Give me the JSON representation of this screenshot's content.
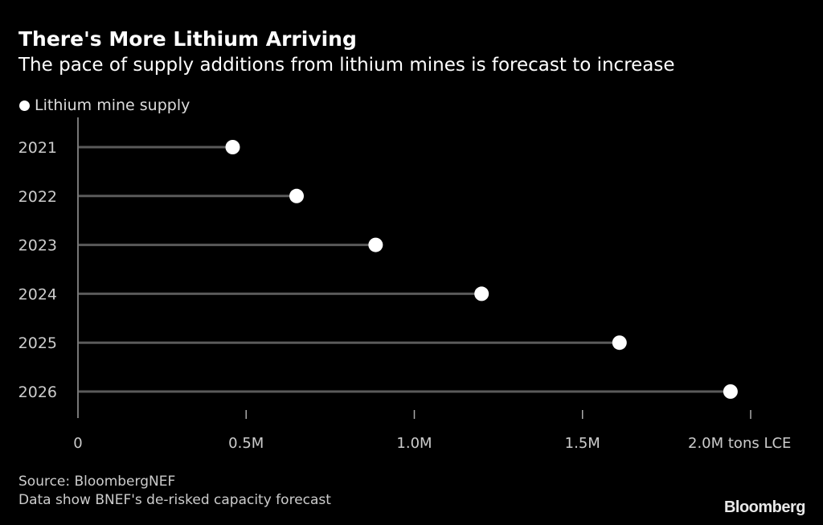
{
  "header": {
    "title": "There's More Lithium Arriving",
    "subtitle": "The pace of supply additions from lithium mines is forecast to increase"
  },
  "legend": {
    "label": "Lithium mine supply"
  },
  "footer": {
    "source": "Source: BloombergNEF",
    "note": "Data show BNEF's de-risked capacity forecast",
    "brand": "Bloomberg"
  },
  "colors": {
    "background": "#000000",
    "dot": "#ffffff",
    "stem": "#5a5a5a",
    "axis": "#777777",
    "text": "#cccccc"
  },
  "chart_data": {
    "type": "lollipop",
    "title": "There's More Lithium Arriving",
    "subtitle": "The pace of supply additions from lithium mines is forecast to increase",
    "orientation": "horizontal",
    "categories": [
      "2021",
      "2022",
      "2023",
      "2024",
      "2025",
      "2026"
    ],
    "series": [
      {
        "name": "Lithium mine supply",
        "values": [
          0.46,
          0.65,
          0.885,
          1.2,
          1.61,
          1.94
        ]
      }
    ],
    "unit": "million tons LCE",
    "xlim": [
      0,
      2.0
    ],
    "xticks": [
      0,
      0.5,
      1.0,
      1.5,
      2.0
    ],
    "xtick_labels": [
      "0",
      "0.5M",
      "1.0M",
      "1.5M",
      "2.0M tons LCE"
    ],
    "xlabel": "",
    "ylabel": "",
    "grid": false,
    "legend_position": "top-left"
  }
}
